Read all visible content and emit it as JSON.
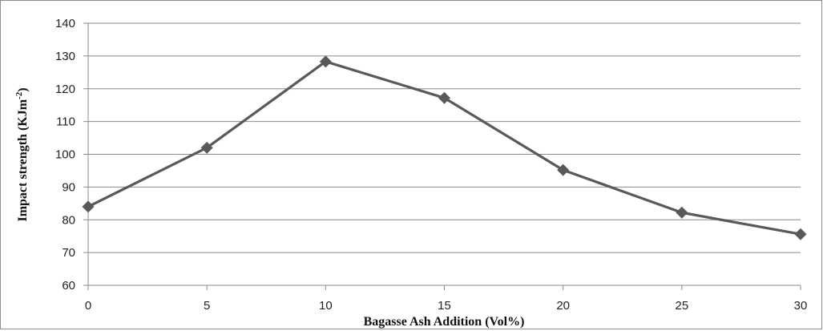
{
  "chart_data": {
    "type": "line",
    "title": "",
    "xlabel": "Bagasse Ash Addition  (Vol%)",
    "ylabel": "Impact strength (KJm",
    "ylabel_superscript": "-2",
    "ylabel_close": ")",
    "x_ticks": [
      "0",
      "5",
      "10",
      "15",
      "20",
      "25",
      "30"
    ],
    "y_ticks": [
      "60",
      "70",
      "80",
      "90",
      "100",
      "110",
      "120",
      "130",
      "140"
    ],
    "xlim": [
      0,
      30
    ],
    "ylim": [
      60,
      140
    ],
    "grid": "horizontal",
    "legend": "none",
    "marker": "diamond",
    "series": [
      {
        "color": "#595959",
        "x": [
          0,
          5,
          10,
          15,
          20,
          25,
          30
        ],
        "y": [
          84,
          102,
          128.3,
          117.2,
          95.2,
          82.2,
          75.6
        ]
      }
    ]
  }
}
